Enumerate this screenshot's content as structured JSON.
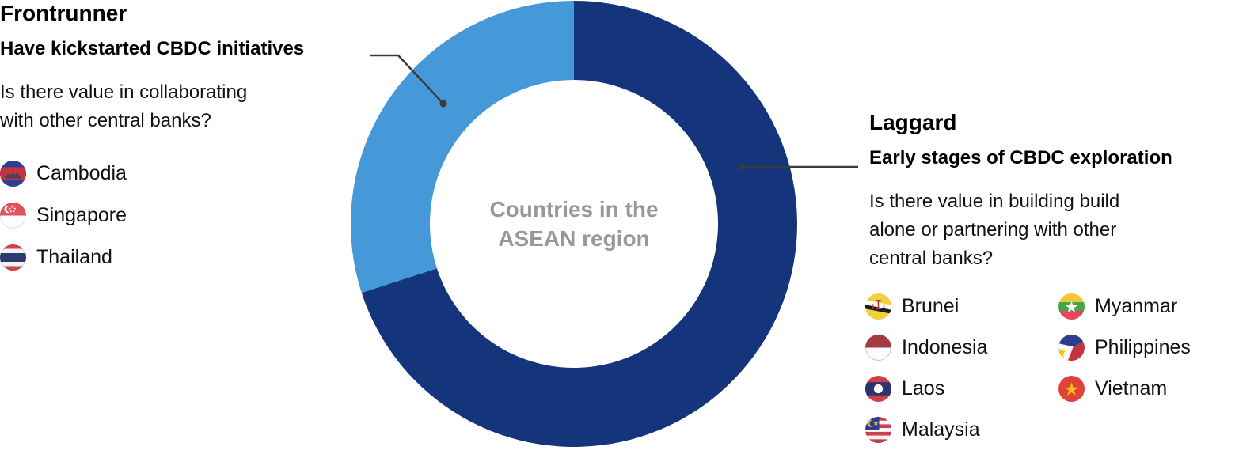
{
  "page": {
    "background": "#ffffff"
  },
  "chart_data": {
    "type": "pie",
    "donut": true,
    "title": "",
    "center_label": "Countries in the\nASEAN region",
    "center_label_color": "#989898",
    "direction": "clockwise-from-top",
    "start_angle_deg": 0,
    "legend_position": "none",
    "segments": [
      {
        "name": "Laggard",
        "value": 7,
        "share_pct": 70,
        "color": "#14357B",
        "countries": [
          "Brunei",
          "Indonesia",
          "Laos",
          "Malaysia",
          "Myanmar",
          "Philippines",
          "Vietnam"
        ]
      },
      {
        "name": "Frontrunner",
        "value": 3,
        "share_pct": 30,
        "color": "#4599D8",
        "countries": [
          "Cambodia",
          "Singapore",
          "Thailand"
        ]
      }
    ]
  },
  "frontrunner": {
    "title": "Frontrunner",
    "subtitle": "Have kickstarted CBDC initiatives",
    "question": "Is there value in collaborating\nwith other central banks?",
    "countries": [
      {
        "name": "Cambodia"
      },
      {
        "name": "Singapore"
      },
      {
        "name": "Thailand"
      }
    ]
  },
  "laggard": {
    "title": "Laggard",
    "subtitle": "Early stages of CBDC exploration",
    "question": "Is there value in building build\nalone or partnering with other\ncentral banks?",
    "countries": [
      {
        "name": "Brunei"
      },
      {
        "name": "Indonesia"
      },
      {
        "name": "Laos"
      },
      {
        "name": "Malaysia"
      },
      {
        "name": "Myanmar"
      },
      {
        "name": "Philippines"
      },
      {
        "name": "Vietnam"
      }
    ]
  },
  "colors": {
    "laggard_dark_blue": "#14357B",
    "frontrunner_light_blue": "#4599D8",
    "callout_gray": "#3A3A3A",
    "text_black": "#111111",
    "center_gray": "#989898"
  }
}
